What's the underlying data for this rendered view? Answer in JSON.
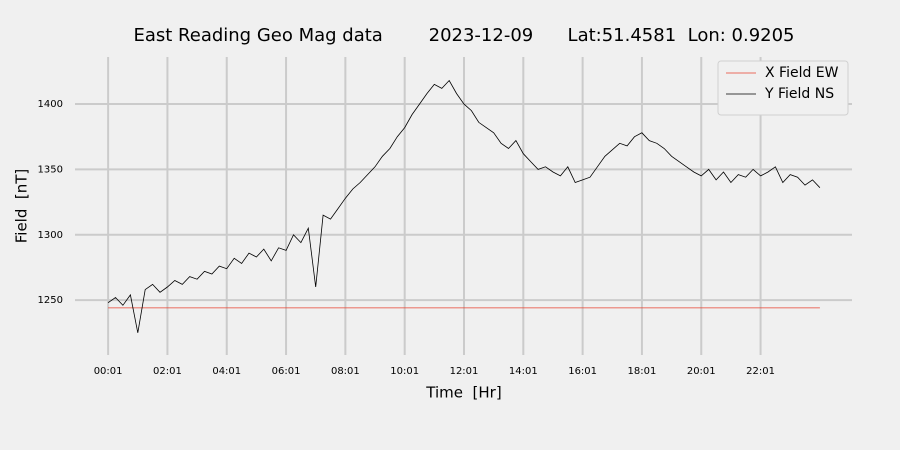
{
  "chart_data": {
    "type": "line",
    "title": "East Reading Geo Mag data        2023-12-09      Lat:51.4581  Lon: 0.9205",
    "x_label": "Time  [Hr]",
    "y_label": "Field  [nT]",
    "x": [
      1,
      16,
      31,
      46,
      61,
      76,
      91,
      106,
      121,
      136,
      151,
      166,
      181,
      196,
      211,
      226,
      241,
      256,
      271,
      286,
      301,
      316,
      331,
      346,
      361,
      376,
      391,
      406,
      421,
      436,
      451,
      466,
      481,
      496,
      511,
      526,
      541,
      556,
      571,
      586,
      601,
      616,
      631,
      646,
      661,
      676,
      691,
      706,
      721,
      736,
      751,
      766,
      781,
      796,
      811,
      826,
      841,
      856,
      871,
      886,
      901,
      916,
      931,
      946,
      961,
      976,
      991,
      1006,
      1021,
      1036,
      1051,
      1066,
      1081,
      1096,
      1111,
      1126,
      1141,
      1156,
      1171,
      1186,
      1201,
      1216,
      1231,
      1246,
      1261,
      1276,
      1291,
      1306,
      1321,
      1336,
      1351,
      1366,
      1381,
      1396,
      1411,
      1426,
      1441
    ],
    "series": [
      {
        "name": "X Field EW",
        "color": "#e8412e",
        "values": [
          1244,
          1244,
          1244,
          1244,
          1244,
          1244,
          1244,
          1244,
          1244,
          1244,
          1244,
          1244,
          1244,
          1244,
          1244,
          1244,
          1244,
          1244,
          1244,
          1244,
          1244,
          1244,
          1244,
          1244,
          1244,
          1244,
          1244,
          1244,
          1244,
          1244,
          1244,
          1244,
          1244,
          1244,
          1244,
          1244,
          1244,
          1244,
          1244,
          1244,
          1244,
          1244,
          1244,
          1244,
          1244,
          1244,
          1244,
          1244,
          1244,
          1244,
          1244,
          1244,
          1244,
          1244,
          1244,
          1244,
          1244,
          1244,
          1244,
          1244,
          1244,
          1244,
          1244,
          1244,
          1244,
          1244,
          1244,
          1244,
          1244,
          1244,
          1244,
          1244,
          1244,
          1244,
          1244,
          1244,
          1244,
          1244,
          1244,
          1244,
          1244,
          1244,
          1244,
          1244,
          1244,
          1244,
          1244,
          1244,
          1244,
          1244,
          1244,
          1244,
          1244,
          1244,
          1244,
          1244,
          1244
        ]
      },
      {
        "name": "Y Field NS",
        "color": "#000000",
        "values": [
          1248,
          1252,
          1246,
          1254,
          1225,
          1258,
          1262,
          1256,
          1260,
          1265,
          1262,
          1268,
          1266,
          1272,
          1270,
          1276,
          1274,
          1282,
          1278,
          1286,
          1283,
          1289,
          1280,
          1290,
          1288,
          1300,
          1294,
          1305,
          1260,
          1315,
          1312,
          1320,
          1328,
          1335,
          1340,
          1346,
          1352,
          1360,
          1366,
          1375,
          1382,
          1392,
          1400,
          1408,
          1415,
          1412,
          1418,
          1408,
          1400,
          1395,
          1386,
          1382,
          1378,
          1370,
          1366,
          1372,
          1362,
          1356,
          1350,
          1352,
          1348,
          1345,
          1352,
          1340,
          1342,
          1344,
          1352,
          1360,
          1365,
          1370,
          1368,
          1375,
          1378,
          1372,
          1370,
          1366,
          1360,
          1356,
          1352,
          1348,
          1345,
          1350,
          1342,
          1348,
          1340,
          1346,
          1344,
          1350,
          1345,
          1348,
          1352,
          1340,
          1346,
          1344,
          1338,
          1342,
          1336
        ]
      }
    ],
    "xlim": [
      -66,
      1506
    ],
    "ylim": [
      1208,
      1436
    ],
    "xticks": [
      {
        "value": 1,
        "label": "00:01"
      },
      {
        "value": 121,
        "label": "02:01"
      },
      {
        "value": 241,
        "label": "04:01"
      },
      {
        "value": 361,
        "label": "06:01"
      },
      {
        "value": 481,
        "label": "08:01"
      },
      {
        "value": 601,
        "label": "10:01"
      },
      {
        "value": 721,
        "label": "12:01"
      },
      {
        "value": 841,
        "label": "14:01"
      },
      {
        "value": 961,
        "label": "16:01"
      },
      {
        "value": 1081,
        "label": "18:01"
      },
      {
        "value": 1201,
        "label": "20:01"
      },
      {
        "value": 1321,
        "label": "22:01"
      }
    ],
    "yticks": [
      1250,
      1300,
      1350,
      1400
    ],
    "grid": true,
    "legend": "upper right"
  }
}
